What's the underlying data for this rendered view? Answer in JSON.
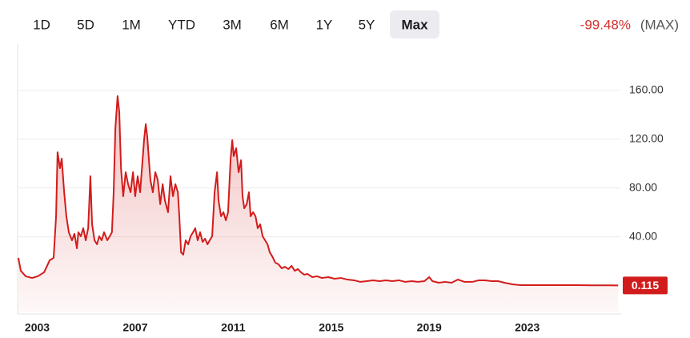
{
  "range_buttons": [
    "1D",
    "5D",
    "1M",
    "YTD",
    "3M",
    "6M",
    "1Y",
    "5Y",
    "Max"
  ],
  "selected_range": 8,
  "change": "-99.48%",
  "change_period": "(MAX)",
  "chart_data": {
    "type": "line",
    "color": "#d21c1c",
    "grid": true,
    "area_fill": true,
    "last_value": 0.115,
    "xlim": [
      2002.2,
      2026.8
    ],
    "xticks": [
      2003,
      2007,
      2011,
      2015,
      2019,
      2023
    ],
    "ylim": [
      -22,
      198
    ],
    "yticks": [
      {
        "value": 40,
        "label": "40.00"
      },
      {
        "value": 80,
        "label": "80.00"
      },
      {
        "value": 120,
        "label": "120.00"
      },
      {
        "value": 160,
        "label": "160.00"
      }
    ],
    "x": [
      2002.23,
      2002.33,
      2002.53,
      2002.79,
      2003.02,
      2003.28,
      2003.51,
      2003.67,
      2003.77,
      2003.83,
      2003.93,
      2004.0,
      2004.1,
      2004.19,
      2004.29,
      2004.42,
      2004.52,
      2004.62,
      2004.68,
      2004.78,
      2004.88,
      2004.98,
      2005.08,
      2005.17,
      2005.24,
      2005.34,
      2005.44,
      2005.53,
      2005.63,
      2005.73,
      2005.86,
      2005.96,
      2006.05,
      2006.12,
      2006.19,
      2006.28,
      2006.35,
      2006.42,
      2006.51,
      2006.61,
      2006.71,
      2006.81,
      2006.91,
      2007.0,
      2007.1,
      2007.2,
      2007.3,
      2007.36,
      2007.43,
      2007.49,
      2007.56,
      2007.62,
      2007.72,
      2007.82,
      2007.92,
      2008.02,
      2008.12,
      2008.21,
      2008.34,
      2008.44,
      2008.54,
      2008.64,
      2008.74,
      2008.8,
      2008.87,
      2008.96,
      2009.06,
      2009.16,
      2009.26,
      2009.36,
      2009.45,
      2009.55,
      2009.65,
      2009.75,
      2009.85,
      2009.95,
      2010.04,
      2010.14,
      2010.24,
      2010.34,
      2010.4,
      2010.5,
      2010.6,
      2010.7,
      2010.79,
      2010.89,
      2010.96,
      2011.02,
      2011.12,
      2011.22,
      2011.32,
      2011.38,
      2011.45,
      2011.55,
      2011.64,
      2011.71,
      2011.81,
      2011.91,
      2012.0,
      2012.1,
      2012.2,
      2012.3,
      2012.4,
      2012.49,
      2012.59,
      2012.72,
      2012.85,
      2012.98,
      2013.11,
      2013.25,
      2013.38,
      2013.51,
      2013.64,
      2013.77,
      2013.9,
      2014.03,
      2014.23,
      2014.42,
      2014.62,
      2014.88,
      2015.14,
      2015.4,
      2015.66,
      2015.93,
      2016.19,
      2016.45,
      2016.71,
      2016.97,
      2017.23,
      2017.49,
      2017.76,
      2018.02,
      2018.28,
      2018.54,
      2018.8,
      2019.0,
      2019.13,
      2019.39,
      2019.65,
      2019.91,
      2020.17,
      2020.44,
      2020.76,
      2021.02,
      2021.28,
      2021.55,
      2021.81,
      2022.07,
      2022.4,
      2022.72,
      2023.05,
      2023.7,
      2024.36,
      2025.01,
      2025.66,
      2026.31,
      2026.71
    ],
    "values": [
      22.7,
      12.1,
      7.6,
      6.2,
      7.6,
      10.8,
      20.7,
      22.7,
      56.8,
      109.3,
      96.2,
      104.1,
      76.5,
      56.8,
      43.7,
      37.1,
      42.4,
      30.5,
      43.7,
      40.4,
      47,
      37.1,
      47,
      89.6,
      50.2,
      37.1,
      33.8,
      40.4,
      37.1,
      43.7,
      37.1,
      40.4,
      43.7,
      76.5,
      129,
      155.3,
      142.2,
      96.2,
      73.2,
      92.9,
      83.1,
      76.5,
      92.9,
      73.2,
      89.6,
      76.5,
      102.8,
      119.2,
      132.3,
      122.5,
      102.8,
      86.4,
      76.5,
      92.9,
      86.4,
      66.7,
      83.1,
      69.9,
      60.1,
      89.6,
      73.2,
      83.1,
      76.5,
      56.8,
      27.3,
      25.3,
      37.1,
      33.8,
      40.4,
      43.7,
      47,
      37.1,
      43.7,
      35.8,
      38.4,
      33.8,
      37.1,
      40.4,
      76.5,
      92.9,
      69.9,
      56.8,
      60.1,
      53.5,
      60.1,
      102.8,
      119.2,
      106.1,
      112.6,
      92.9,
      102.8,
      73.2,
      63.4,
      66.7,
      76.5,
      56.8,
      60.1,
      56.8,
      47,
      50.2,
      40.4,
      37.1,
      33.8,
      27.3,
      24,
      18.7,
      17.4,
      14.1,
      15.4,
      13.5,
      16.1,
      12.1,
      13.5,
      10.8,
      8.9,
      9.5,
      6.9,
      7.6,
      6.2,
      6.9,
      5.6,
      6.2,
      4.9,
      4.3,
      3,
      3.6,
      4.3,
      3.6,
      4.3,
      3.6,
      4.3,
      3,
      3.6,
      3,
      3.6,
      6.9,
      3.6,
      2.3,
      3,
      2.3,
      4.9,
      3,
      3,
      4.3,
      4.3,
      3.6,
      3.6,
      2.3,
      1,
      0.3,
      0.3,
      0.3,
      0.3,
      0.3,
      0.2,
      0.2,
      0.115
    ]
  }
}
